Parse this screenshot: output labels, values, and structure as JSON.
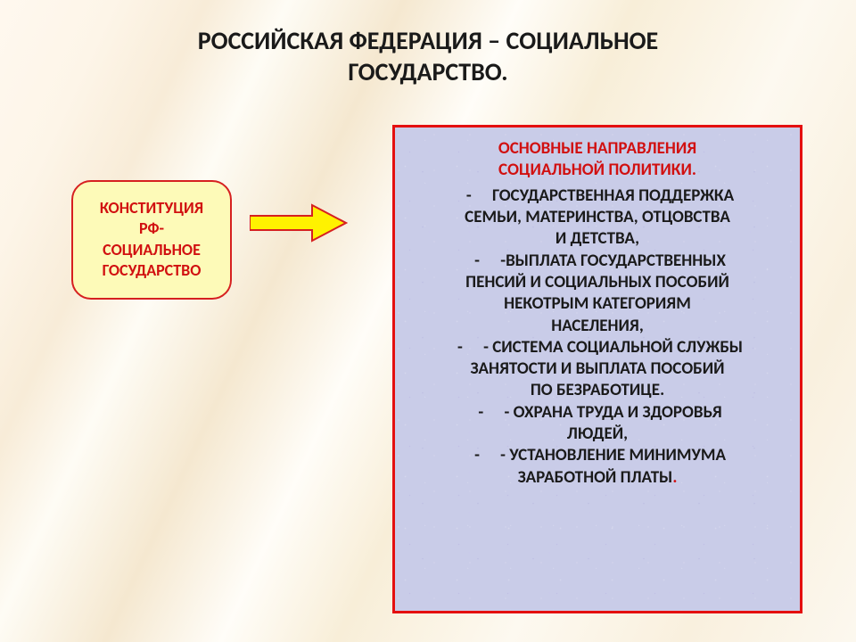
{
  "title": {
    "line1": "РОССИЙСКАЯ  ФЕДЕРАЦИЯ – СОЦИАЛЬНОЕ",
    "line2": "ГОСУДАРСТВО.",
    "color": "#1a1a1a",
    "fontsize": 28
  },
  "left_box": {
    "line1": "КОНСТИТУЦИЯ",
    "line2": "РФ-",
    "line3": "СОЦИАЛЬНОЕ",
    "line4": "ГОСУДАРСТВО",
    "text_color": "#d11010",
    "bg_color": "#fdfab8",
    "border_color": "#d62020",
    "border_width": 2,
    "fontsize": 18
  },
  "arrow": {
    "fill": "#fff200",
    "stroke": "#d62020",
    "stroke_width": 2,
    "width": 110,
    "height": 44
  },
  "right_box": {
    "bg_color": "#c9cce8",
    "border_color": "#e40f0f",
    "border_width": 3,
    "header_color": "#d11010",
    "body_color": "#1a1a1a",
    "fontsize_header": 19,
    "fontsize_body": 19,
    "header_line1": "ОСНОВНЫЕ  НАПРАВЛЕНИЯ",
    "header_line2": "СОЦИАЛЬНОЙ ПОЛИТИКИ.",
    "bullets": [
      [
        "ГОСУДАРСТВЕННАЯ  ПОДДЕРЖКА",
        "СЕМЬИ,  МАТЕРИНСТВА, ОТЦОВСТВА",
        "И ДЕТСТВА,"
      ],
      [
        "-ВЫПЛАТА  ГОСУДАРСТВЕННЫХ",
        "ПЕНСИЙ И СОЦИАЛЬНЫХ ПОСОБИЙ",
        "НЕКОТРЫМ КАТЕГОРИЯМ",
        "НАСЕЛЕНИЯ,"
      ],
      [
        "- СИСТЕМА СОЦИАЛЬНОЙ СЛУЖБЫ",
        "ЗАНЯТОСТИ И ВЫПЛАТА ПОСОБИЙ",
        "ПО БЕЗРАБОТИЦЕ."
      ],
      [
        "- ОХРАНА  ТРУДА И ЗДОРОВЬЯ",
        "ЛЮДЕЙ,"
      ],
      [
        "- УСТАНОВЛЕНИЕ МИНИМУМА",
        "ЗАРАБОТНОЙ ПЛАТЫ."
      ]
    ],
    "last_period_color": "#d11010"
  }
}
